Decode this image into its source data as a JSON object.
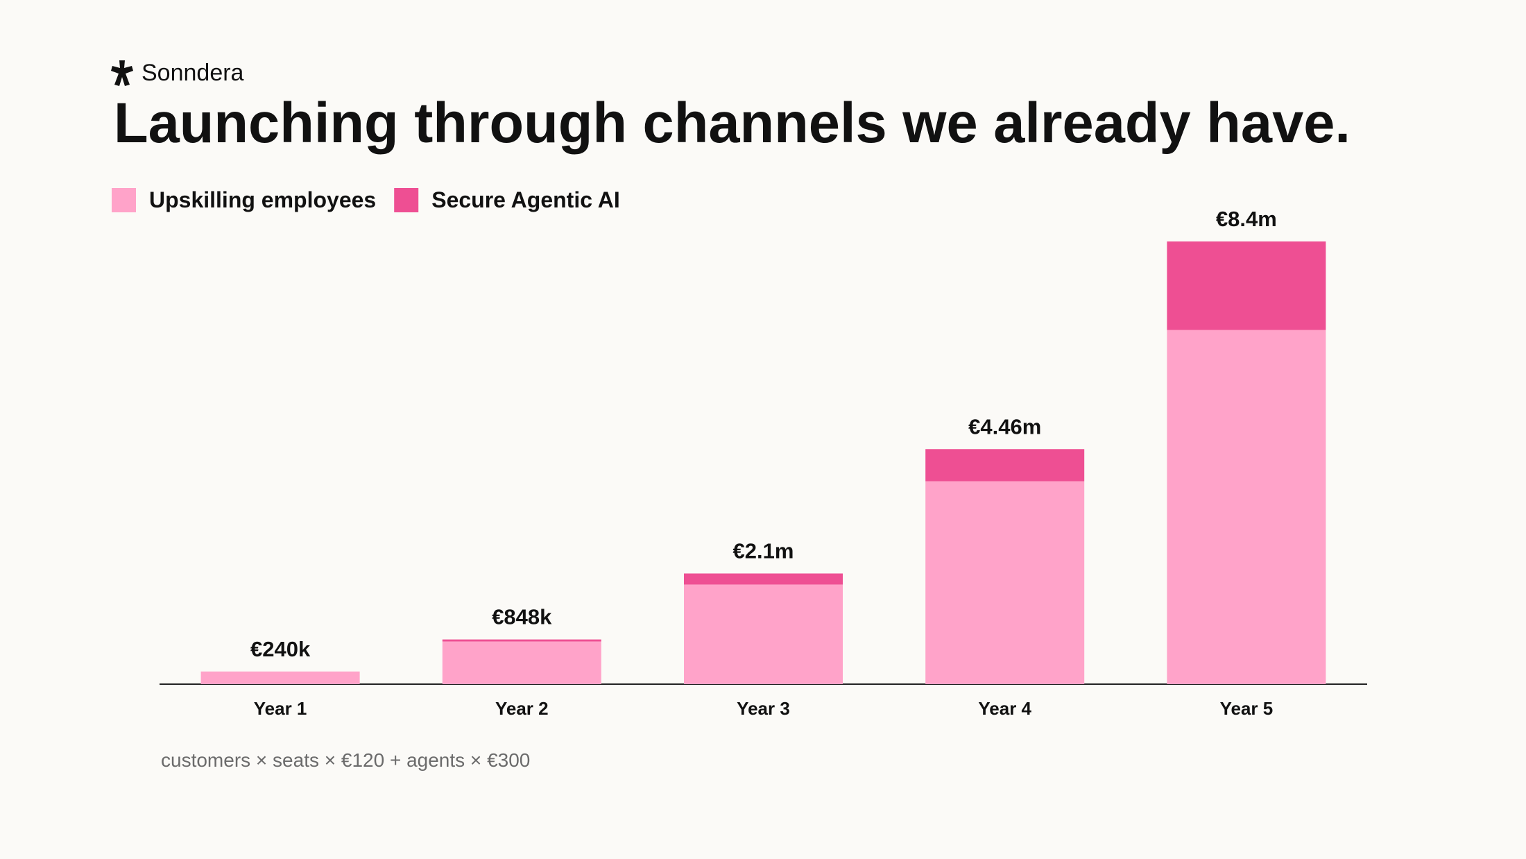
{
  "brand": "Sonndera",
  "chart_data": {
    "type": "bar",
    "stacked": true,
    "title": "Launching through channels we already have.",
    "categories": [
      "Year 1",
      "Year 2",
      "Year 3",
      "Year 4",
      "Year 5"
    ],
    "series": [
      {
        "name": "Upskilling employees",
        "color": "#ffa3c9",
        "values": [
          240000,
          810000,
          1890000,
          3850000,
          6720000
        ]
      },
      {
        "name": "Secure Agentic AI",
        "color": "#ee4f93",
        "values": [
          0,
          38000,
          210000,
          610000,
          1680000
        ]
      }
    ],
    "totals": [
      240000,
      848000,
      2100000,
      4460000,
      8400000
    ],
    "total_labels": [
      "€240k",
      "€848k",
      "€2.1m",
      "€4.46m",
      "€8.4m"
    ],
    "note": "customers × seats × €120 + agents × €300"
  }
}
